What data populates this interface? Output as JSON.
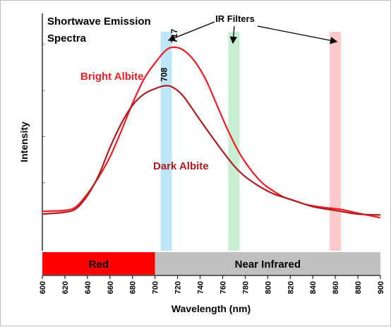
{
  "chart_data": {
    "type": "line",
    "title": "Shortwave Emission Spectra",
    "title_lines": [
      "Shortwave Emission",
      "Spectra"
    ],
    "xlabel": "Wavelength (nm)",
    "ylabel": "Intensity",
    "xlim": [
      600,
      900
    ],
    "ylim": [
      0,
      1
    ],
    "x_ticks": [
      600,
      620,
      640,
      660,
      680,
      700,
      720,
      740,
      760,
      780,
      800,
      820,
      840,
      860,
      880,
      900
    ],
    "x_tick_labels": [
      "600",
      "620",
      "640",
      "660",
      "680",
      "700",
      "720",
      "740",
      "760",
      "780",
      "800",
      "820",
      "840",
      "860",
      "880",
      "900"
    ],
    "y_gridlines": [
      0.3,
      0.55,
      0.8,
      1.05
    ],
    "grid": false,
    "series": [
      {
        "name": "Bright Albite",
        "color": "#ee1c25",
        "x": [
          600,
          620,
          630,
          640,
          650,
          660,
          670,
          680,
          690,
          700,
          710,
          717,
          725,
          735,
          745,
          755,
          765,
          775,
          785,
          795,
          805,
          815,
          825,
          835,
          850,
          865,
          880,
          900
        ],
        "y": [
          0.145,
          0.15,
          0.17,
          0.24,
          0.33,
          0.44,
          0.58,
          0.73,
          0.86,
          0.95,
          1.02,
          1.035,
          1.02,
          0.96,
          0.86,
          0.72,
          0.58,
          0.46,
          0.37,
          0.3,
          0.255,
          0.22,
          0.2,
          0.18,
          0.165,
          0.155,
          0.135,
          0.11
        ]
      },
      {
        "name": "Dark Albite",
        "color": "#b01c20",
        "x": [
          600,
          620,
          630,
          640,
          650,
          660,
          670,
          680,
          690,
          700,
          708,
          715,
          725,
          740,
          760,
          775,
          790,
          805,
          820,
          840,
          860,
          880,
          900
        ],
        "y": [
          0.13,
          0.14,
          0.16,
          0.23,
          0.34,
          0.49,
          0.62,
          0.72,
          0.78,
          0.81,
          0.825,
          0.82,
          0.77,
          0.64,
          0.47,
          0.36,
          0.29,
          0.24,
          0.21,
          0.17,
          0.15,
          0.13,
          0.125
        ]
      }
    ],
    "annotations": [
      {
        "text": "717",
        "x": 717,
        "y": 1.035
      },
      {
        "text": "708",
        "x": 708,
        "y": 0.825
      },
      {
        "text": "Bright Albite",
        "color": "#ee1c25"
      },
      {
        "text": "Dark Albite",
        "color": "#b01c20"
      },
      {
        "text": "IR Filters"
      }
    ],
    "filter_bands": [
      {
        "center": 710,
        "width": 10,
        "color": "#a8dcf6"
      },
      {
        "center": 770,
        "width": 10,
        "color": "#b6e8c4"
      },
      {
        "center": 860,
        "width": 10,
        "color": "#f9b7b7"
      }
    ],
    "spectral_regions": [
      {
        "label": "Red",
        "from": 600,
        "to": 700,
        "color": "#ff0000"
      },
      {
        "label": "Near Infrared",
        "from": 700,
        "to": 900,
        "color": "#c0c0c0"
      }
    ]
  }
}
